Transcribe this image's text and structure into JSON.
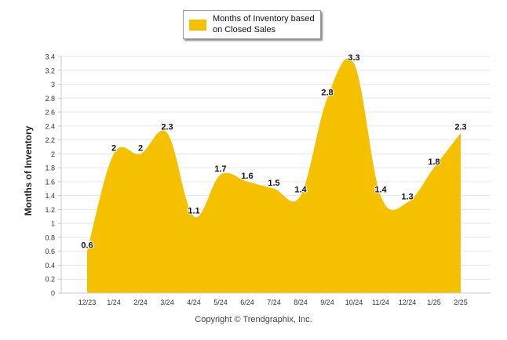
{
  "chart_data": {
    "type": "area",
    "ylabel": "Months of Inventory",
    "series": [
      {
        "name": "Months of Inventory based on Closed Sales",
        "values": [
          0.6,
          2,
          2,
          2.3,
          1.1,
          1.7,
          1.6,
          1.5,
          1.4,
          2.8,
          3.3,
          1.4,
          1.3,
          1.8,
          2.3
        ]
      }
    ],
    "categories": [
      "12/23",
      "1/24",
      "2/24",
      "3/24",
      "4/24",
      "5/24",
      "6/24",
      "7/24",
      "8/24",
      "9/24",
      "10/24",
      "11/24",
      "12/24",
      "1/25",
      "2/25"
    ],
    "data_labels": [
      "0.6",
      "2",
      "2",
      "2.3",
      "1.1",
      "1.7",
      "1.6",
      "1.5",
      "1.4",
      "2.8",
      "3.3",
      "1.4",
      "1.3",
      "1.8",
      "2.3"
    ],
    "ylim": [
      0,
      3.4
    ],
    "yticks": [
      "0",
      "0.2",
      "0.4",
      "0.6",
      "0.8",
      "1",
      "1.2",
      "1.4",
      "1.6",
      "1.8",
      "2",
      "2.2",
      "2.4",
      "2.6",
      "2.8",
      "3",
      "3.2",
      "3.4"
    ],
    "grid": true,
    "legend_position": "top-center",
    "color": "#F5C000"
  },
  "footer": {
    "copyright": "Copyright © Trendgraphix, Inc."
  }
}
